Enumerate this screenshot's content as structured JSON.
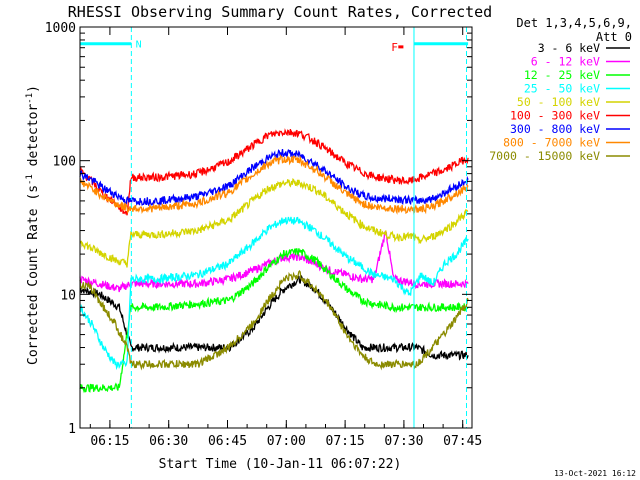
{
  "chart_data": {
    "type": "line",
    "title": "RHESSI Observing Summary Count Rates, Corrected",
    "xlabel": "Start Time (10-Jan-11 06:07:22)",
    "ylabel": "Corrected Count Rate (s^-1 detector^-1)",
    "ylabel_parts": {
      "main": "Corrected Count Rate (s",
      "exp1": "-1",
      "mid": " detector",
      "exp2": "-1",
      "end": ")"
    },
    "x_unit": "minutes after 06:07:22",
    "xlim": [
      0,
      100
    ],
    "ylim": [
      1,
      1000
    ],
    "yscale": "log",
    "x_ticks": [
      {
        "x": 7.63,
        "label": "06:15"
      },
      {
        "x": 22.63,
        "label": "06:30"
      },
      {
        "x": 37.63,
        "label": "06:45"
      },
      {
        "x": 52.63,
        "label": "07:00"
      },
      {
        "x": 67.63,
        "label": "07:15"
      },
      {
        "x": 82.63,
        "label": "07:30"
      },
      {
        "x": 97.63,
        "label": "07:45"
      }
    ],
    "y_ticks": [
      {
        "y": 1,
        "label": "1"
      },
      {
        "y": 10,
        "label": "10"
      },
      {
        "y": 100,
        "label": "100"
      },
      {
        "y": 1000,
        "label": "1000"
      }
    ],
    "grid": false,
    "legend_position": "right",
    "legend_header": [
      "Det 1,3,4,5,6,9,",
      "Att 0"
    ],
    "series": [
      {
        "name": "3 - 6 keV",
        "color": "#000000",
        "x": [
          0,
          5,
          10,
          13,
          20,
          30,
          38,
          44,
          48,
          52,
          56,
          60,
          64,
          68,
          72,
          75,
          80,
          86,
          90,
          95,
          99
        ],
        "y": [
          11,
          10,
          8,
          4,
          4,
          4,
          4,
          5.5,
          8,
          11,
          13,
          11,
          8,
          5.5,
          4,
          4,
          4,
          4,
          3.5,
          3.5,
          3.5
        ]
      },
      {
        "name": "6 - 12 keV",
        "color": "#ff00ff",
        "x": [
          0,
          5,
          10,
          13,
          20,
          30,
          38,
          44,
          48,
          52,
          56,
          60,
          64,
          68,
          72,
          75,
          78,
          80,
          86,
          90,
          95,
          99
        ],
        "y": [
          13,
          12,
          11,
          12,
          12,
          12,
          13,
          15,
          17,
          19,
          19,
          17,
          15,
          14,
          13,
          13,
          30,
          13,
          12,
          12,
          12,
          12
        ]
      },
      {
        "name": "12 - 25 keV",
        "color": "#00ff00",
        "x": [
          0,
          5,
          10,
          13,
          20,
          30,
          38,
          44,
          48,
          52,
          56,
          60,
          64,
          68,
          72,
          75,
          80,
          86,
          90,
          95,
          99
        ],
        "y": [
          2,
          2,
          2,
          8,
          8,
          8.5,
          9,
          12,
          16,
          20,
          21,
          18,
          14,
          11,
          9,
          8.5,
          8,
          8,
          8,
          8,
          8
        ]
      },
      {
        "name": "25 - 50 keV",
        "color": "#00ffff",
        "x": [
          0,
          3,
          6,
          9,
          12,
          13,
          20,
          30,
          38,
          44,
          48,
          52,
          56,
          60,
          64,
          68,
          72,
          75,
          80,
          84,
          87,
          90,
          93,
          96,
          99
        ],
        "y": [
          8,
          6,
          4,
          3,
          3,
          13,
          13,
          14,
          17,
          24,
          31,
          36,
          35,
          30,
          24,
          19,
          16,
          14,
          13,
          10,
          14,
          12,
          17,
          20,
          26
        ]
      },
      {
        "name": "50 - 100 keV",
        "color": "#d4d400",
        "x": [
          0,
          3,
          6,
          9,
          12,
          13,
          20,
          30,
          38,
          44,
          48,
          52,
          56,
          60,
          64,
          68,
          72,
          75,
          80,
          85,
          86,
          90,
          95,
          99
        ],
        "y": [
          25,
          22,
          20,
          18,
          17,
          28,
          28,
          30,
          36,
          50,
          62,
          68,
          68,
          61,
          50,
          40,
          33,
          30,
          27,
          27,
          25,
          27,
          33,
          42
        ]
      },
      {
        "name": "100 - 300 keV",
        "color": "#ff0000",
        "x": [
          0,
          3,
          6,
          9,
          12,
          13,
          20,
          30,
          38,
          44,
          48,
          52,
          56,
          60,
          64,
          68,
          72,
          75,
          80,
          84,
          87,
          90,
          93,
          96,
          99
        ],
        "y": [
          85,
          70,
          56,
          48,
          40,
          75,
          75,
          80,
          98,
          130,
          155,
          165,
          160,
          140,
          115,
          95,
          82,
          76,
          72,
          70,
          75,
          80,
          85,
          95,
          105
        ]
      },
      {
        "name": "300 - 800 keV",
        "color": "#0000ff",
        "x": [
          0,
          3,
          6,
          9,
          12,
          13,
          20,
          30,
          38,
          44,
          48,
          52,
          56,
          60,
          64,
          68,
          72,
          75,
          80,
          86,
          90,
          95,
          99
        ],
        "y": [
          80,
          72,
          62,
          56,
          50,
          50,
          50,
          54,
          65,
          88,
          105,
          115,
          110,
          95,
          78,
          63,
          55,
          52,
          52,
          50,
          52,
          62,
          72
        ]
      },
      {
        "name": "800 - 7000 keV",
        "color": "#ff8800",
        "x": [
          0,
          3,
          6,
          9,
          12,
          13,
          20,
          30,
          38,
          44,
          48,
          52,
          56,
          60,
          64,
          68,
          72,
          75,
          80,
          86,
          90,
          95,
          99
        ],
        "y": [
          70,
          62,
          54,
          48,
          44,
          44,
          44,
          48,
          58,
          78,
          95,
          103,
          100,
          86,
          70,
          56,
          48,
          45,
          44,
          43,
          45,
          55,
          64
        ]
      },
      {
        "name": "7000 - 15000 keV",
        "color": "#8b8b00",
        "x": [
          0,
          3,
          6,
          9,
          12,
          13,
          20,
          30,
          38,
          44,
          48,
          52,
          56,
          60,
          64,
          68,
          72,
          75,
          80,
          86,
          90,
          95,
          99
        ],
        "y": [
          12,
          11,
          8,
          6,
          4,
          3,
          3,
          3,
          4,
          6,
          9,
          13,
          14,
          11,
          8,
          5,
          3.5,
          3,
          3,
          3,
          4,
          6,
          9
        ]
      }
    ],
    "annotations": {
      "segments": [
        {
          "x_start": 0,
          "x_end": 13.1,
          "y": 750,
          "color": "#00ffff"
        },
        {
          "x_start": 85.2,
          "x_end": 99,
          "y": 750,
          "color": "#00ffff"
        }
      ],
      "segment_label": {
        "text": "N",
        "x": 14.2,
        "y": 750,
        "color": "#00ffff"
      },
      "flare_marker": {
        "text": "F",
        "x": 79.4,
        "y": 710,
        "color": "#ff0000"
      },
      "flare_bar": {
        "x_start": 81.2,
        "x_end": 82.5,
        "y": 710,
        "color": "#ff0000"
      },
      "solid_vlines": [
        {
          "x": 85.2,
          "color": "#00ffff"
        }
      ],
      "dashed_vlines": [
        {
          "x": 13.1,
          "color": "#00ffff"
        },
        {
          "x": 98.6,
          "color": "#00ffff"
        }
      ]
    },
    "footer_timestamp": "13-Oct-2021 16:12"
  }
}
